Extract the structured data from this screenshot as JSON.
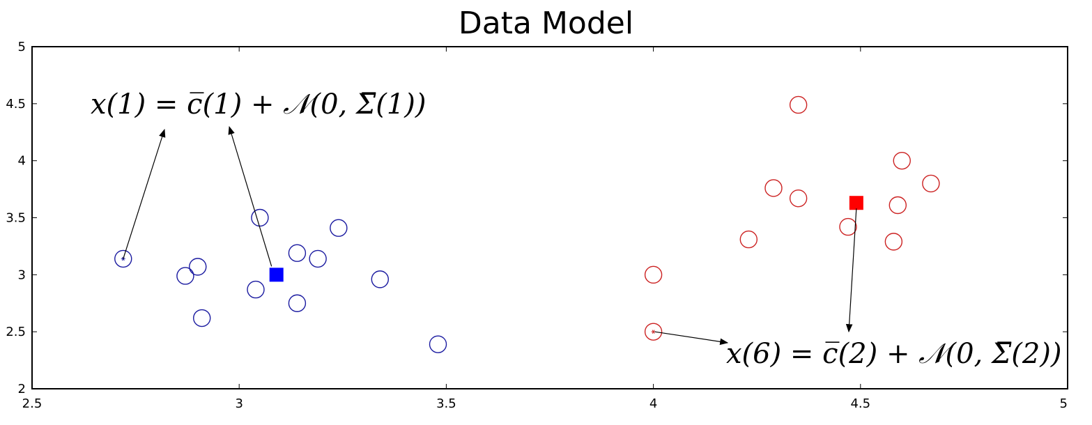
{
  "chart_data": {
    "type": "scatter",
    "title": "Data Model",
    "xlabel": "",
    "ylabel": "",
    "xlim": [
      2.5,
      5
    ],
    "ylim": [
      2,
      5
    ],
    "xticks": [
      2.5,
      3,
      3.5,
      4,
      4.5,
      5
    ],
    "yticks": [
      2,
      2.5,
      3,
      3.5,
      4,
      4.5,
      5
    ],
    "xtick_labels": [
      "2.5",
      "3",
      "3.5",
      "4",
      "4.5",
      "5"
    ],
    "ytick_labels": [
      "2",
      "2.5",
      "3",
      "3.5",
      "4",
      "4.5",
      "5"
    ],
    "grid": false,
    "series": [
      {
        "color": "#1a1aa0",
        "marker": "open-circle",
        "points": [
          [
            2.72,
            3.14
          ],
          [
            2.87,
            2.99
          ],
          [
            2.9,
            3.07
          ],
          [
            2.91,
            2.62
          ],
          [
            3.04,
            2.87
          ],
          [
            3.05,
            3.5
          ],
          [
            3.14,
            3.19
          ],
          [
            3.14,
            2.75
          ],
          [
            3.19,
            3.14
          ],
          [
            3.24,
            3.41
          ],
          [
            3.34,
            2.96
          ],
          [
            3.48,
            2.39
          ]
        ]
      },
      {
        "color": "#cc2222",
        "marker": "open-circle",
        "points": [
          [
            4.0,
            3.0
          ],
          [
            4.0,
            2.5
          ],
          [
            4.23,
            3.31
          ],
          [
            4.29,
            3.76
          ],
          [
            4.35,
            4.49
          ],
          [
            4.35,
            3.67
          ],
          [
            4.47,
            3.42
          ],
          [
            4.58,
            3.29
          ],
          [
            4.59,
            3.61
          ],
          [
            4.6,
            4.0
          ],
          [
            4.67,
            3.8
          ]
        ]
      }
    ],
    "centers": [
      {
        "x": 3.09,
        "y": 3.0,
        "color": "#0000ff"
      },
      {
        "x": 4.49,
        "y": 3.63,
        "color": "#ff0000"
      }
    ],
    "highlighted_points": [
      {
        "x": 2.72,
        "y": 3.14,
        "color": "#1a1aa0"
      },
      {
        "x": 4.0,
        "y": 2.5,
        "color": "#cc2222"
      }
    ],
    "annotations": [
      {
        "text": "x(1) = c̅(1) + 𝒩(0, Σ̅(1))"
      },
      {
        "text": "x(6) = c̅(2) + 𝒩(0, Σ̅(2))"
      }
    ]
  }
}
